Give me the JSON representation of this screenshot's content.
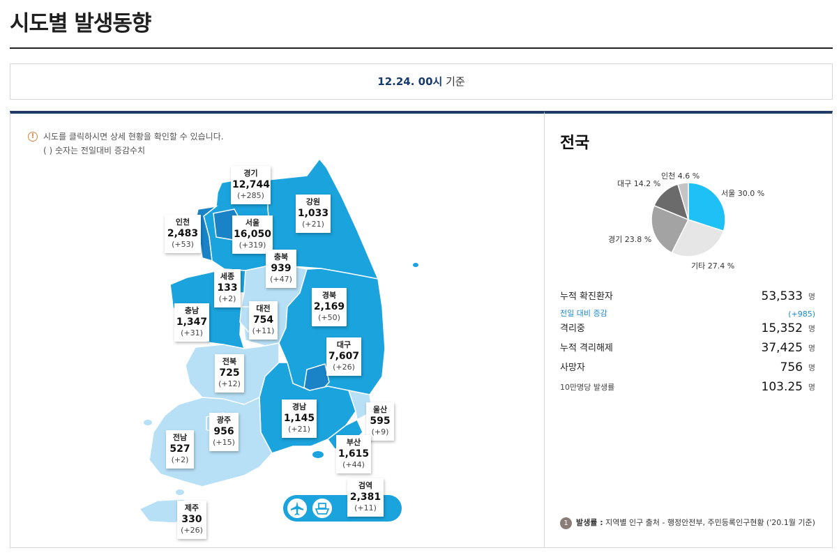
{
  "header": {
    "title": "시도별 발생동향"
  },
  "date_bar": {
    "date": "12.24. 00시",
    "suffix": "기준"
  },
  "notice": {
    "icon": "info-icon",
    "line1": "시도를 클릭하시면 상세 현황을 확인할 수 있습니다.",
    "line2": "( ) 숫자는 전일대비 증감수치"
  },
  "regions": [
    {
      "id": "gyeonggi",
      "name": "경기",
      "count": "12,744",
      "diff": "(+285)"
    },
    {
      "id": "gangwon",
      "name": "강원",
      "count": "1,033",
      "diff": "(+21)"
    },
    {
      "id": "incheon",
      "name": "인천",
      "count": "2,483",
      "diff": "(+53)"
    },
    {
      "id": "seoul",
      "name": "서울",
      "count": "16,050",
      "diff": "(+319)"
    },
    {
      "id": "chungbuk",
      "name": "충북",
      "count": "939",
      "diff": "(+47)"
    },
    {
      "id": "sejong",
      "name": "세종",
      "count": "133",
      "diff": "(+2)"
    },
    {
      "id": "gyeongbuk",
      "name": "경북",
      "count": "2,169",
      "diff": "(+50)"
    },
    {
      "id": "daejeon",
      "name": "대전",
      "count": "754",
      "diff": "(+11)"
    },
    {
      "id": "chungnam",
      "name": "충남",
      "count": "1,347",
      "diff": "(+31)"
    },
    {
      "id": "daegu",
      "name": "대구",
      "count": "7,607",
      "diff": "(+26)"
    },
    {
      "id": "jeonbuk",
      "name": "전북",
      "count": "725",
      "diff": "(+12)"
    },
    {
      "id": "gyeongnam",
      "name": "경남",
      "count": "1,145",
      "diff": "(+21)"
    },
    {
      "id": "ulsan",
      "name": "울산",
      "count": "595",
      "diff": "(+9)"
    },
    {
      "id": "gwangju",
      "name": "광주",
      "count": "956",
      "diff": "(+15)"
    },
    {
      "id": "jeonnam",
      "name": "전남",
      "count": "527",
      "diff": "(+2)"
    },
    {
      "id": "busan",
      "name": "부산",
      "count": "1,615",
      "diff": "(+44)"
    },
    {
      "id": "quarantine",
      "name": "검역",
      "count": "2,381",
      "diff": "(+11)"
    },
    {
      "id": "jeju",
      "name": "제주",
      "count": "330",
      "diff": "(+26)"
    }
  ],
  "quarantine_icons": [
    "airplane-icon",
    "ship-icon"
  ],
  "national": {
    "title": "전국",
    "pie": [
      {
        "label": "서울",
        "pct": 30.0,
        "text": "서울 30.0 %",
        "color": "#1ec0f5"
      },
      {
        "label": "기타",
        "pct": 27.4,
        "text": "기타 27.4 %",
        "color": "#e6e6e6"
      },
      {
        "label": "경기",
        "pct": 23.8,
        "text": "경기 23.8 %",
        "color": "#a3a3a3"
      },
      {
        "label": "대구",
        "pct": 14.2,
        "text": "대구 14.2 %",
        "color": "#6b6b6b"
      },
      {
        "label": "인천",
        "pct": 4.6,
        "text": "인천 4.6 %",
        "color": "#c4c4c4"
      }
    ],
    "stats": [
      {
        "key": "누적 확진환자",
        "value": "53,533",
        "unit": "명"
      },
      {
        "key": "전일 대비 증감",
        "value": "(+985)",
        "unit": ""
      },
      {
        "key": "격리중",
        "value": "15,352",
        "unit": "명"
      },
      {
        "key": "누적 격리해제",
        "value": "37,425",
        "unit": "명"
      },
      {
        "key": "사망자",
        "value": "756",
        "unit": "명"
      },
      {
        "key": "10만명당 발생률",
        "value": "103.25",
        "unit": "명"
      }
    ],
    "footnote": {
      "num": "1",
      "label": "발생률 :",
      "text": "지역별 인구 출처 - 행정안전부, 주민등록인구현황 ('20.1월 기준)"
    }
  },
  "colors": {
    "navy": "#1f3b64",
    "map_dark": "#1a82c6",
    "map_mid": "#1aa3dd",
    "map_light": "#b7dff6"
  }
}
